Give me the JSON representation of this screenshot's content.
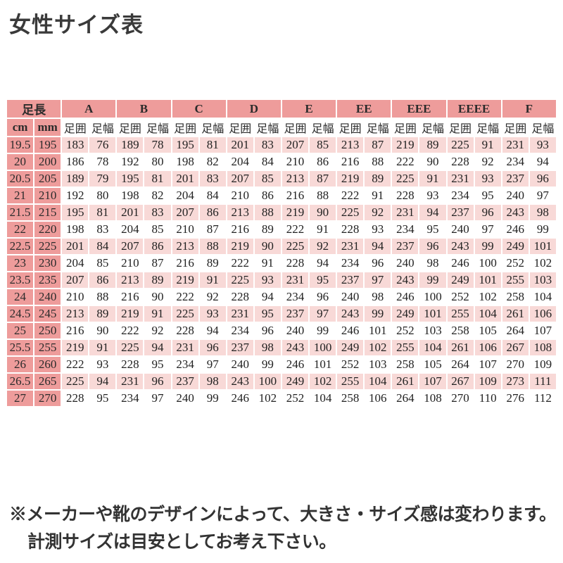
{
  "title": "女性サイズ表",
  "colors": {
    "header_pink": "#ee9c9b",
    "row_pink": "#f8d9d7",
    "row_white": "#ffffff",
    "text": "#222222"
  },
  "table": {
    "foot_length_label": "足長",
    "unit_cm": "cm",
    "unit_mm": "mm",
    "width_groups": [
      "A",
      "B",
      "C",
      "D",
      "E",
      "EE",
      "EEE",
      "EEEE",
      "F"
    ],
    "circumference_label": "足囲",
    "width_label": "足幅",
    "rows": [
      {
        "cm": "19.5",
        "mm": "195",
        "values": [
          183,
          76,
          189,
          78,
          195,
          81,
          201,
          83,
          207,
          85,
          213,
          87,
          219,
          89,
          225,
          91,
          231,
          93
        ]
      },
      {
        "cm": "20",
        "mm": "200",
        "values": [
          186,
          78,
          192,
          80,
          198,
          82,
          204,
          84,
          210,
          86,
          216,
          88,
          222,
          90,
          228,
          92,
          234,
          94
        ]
      },
      {
        "cm": "20.5",
        "mm": "205",
        "values": [
          189,
          79,
          195,
          81,
          201,
          83,
          207,
          85,
          213,
          87,
          219,
          89,
          225,
          91,
          231,
          93,
          237,
          96
        ]
      },
      {
        "cm": "21",
        "mm": "210",
        "values": [
          192,
          80,
          198,
          82,
          204,
          84,
          210,
          86,
          216,
          88,
          222,
          91,
          228,
          93,
          234,
          95,
          240,
          97
        ]
      },
      {
        "cm": "21.5",
        "mm": "215",
        "values": [
          195,
          81,
          201,
          83,
          207,
          86,
          213,
          88,
          219,
          90,
          225,
          92,
          231,
          94,
          237,
          96,
          243,
          98
        ]
      },
      {
        "cm": "22",
        "mm": "220",
        "values": [
          198,
          83,
          204,
          85,
          210,
          87,
          216,
          89,
          222,
          91,
          228,
          93,
          234,
          95,
          240,
          97,
          246,
          99
        ]
      },
      {
        "cm": "22.5",
        "mm": "225",
        "values": [
          201,
          84,
          207,
          86,
          213,
          88,
          219,
          90,
          225,
          92,
          231,
          94,
          237,
          96,
          243,
          99,
          249,
          101
        ]
      },
      {
        "cm": "23",
        "mm": "230",
        "values": [
          204,
          85,
          210,
          87,
          216,
          89,
          222,
          91,
          228,
          94,
          234,
          96,
          240,
          98,
          246,
          100,
          252,
          102
        ]
      },
      {
        "cm": "23.5",
        "mm": "235",
        "values": [
          207,
          86,
          213,
          89,
          219,
          91,
          225,
          93,
          231,
          95,
          237,
          97,
          243,
          99,
          249,
          101,
          255,
          103
        ]
      },
      {
        "cm": "24",
        "mm": "240",
        "values": [
          210,
          88,
          216,
          90,
          222,
          92,
          228,
          94,
          234,
          96,
          240,
          98,
          246,
          100,
          252,
          102,
          258,
          104
        ]
      },
      {
        "cm": "24.5",
        "mm": "245",
        "values": [
          213,
          89,
          219,
          91,
          225,
          93,
          231,
          95,
          237,
          97,
          243,
          99,
          249,
          101,
          255,
          104,
          261,
          106
        ]
      },
      {
        "cm": "25",
        "mm": "250",
        "values": [
          216,
          90,
          222,
          92,
          228,
          94,
          234,
          96,
          240,
          99,
          246,
          101,
          252,
          103,
          258,
          105,
          264,
          107
        ]
      },
      {
        "cm": "25.5",
        "mm": "255",
        "values": [
          219,
          91,
          225,
          94,
          231,
          96,
          237,
          98,
          243,
          100,
          249,
          102,
          255,
          104,
          261,
          106,
          267,
          108
        ]
      },
      {
        "cm": "26",
        "mm": "260",
        "values": [
          222,
          93,
          228,
          95,
          234,
          97,
          240,
          99,
          246,
          101,
          252,
          103,
          258,
          105,
          264,
          107,
          270,
          109
        ]
      },
      {
        "cm": "26.5",
        "mm": "265",
        "values": [
          225,
          94,
          231,
          96,
          237,
          98,
          243,
          100,
          249,
          102,
          255,
          104,
          261,
          107,
          267,
          109,
          273,
          111
        ]
      },
      {
        "cm": "27",
        "mm": "270",
        "values": [
          228,
          95,
          234,
          97,
          240,
          99,
          246,
          102,
          252,
          104,
          258,
          106,
          264,
          108,
          270,
          110,
          276,
          112
        ]
      }
    ]
  },
  "footer": {
    "line1": "※メーカーや靴のデザインによって、大きさ・サイズ感は変わります。",
    "line2": "計測サイズは目安としてお考え下さい。"
  }
}
